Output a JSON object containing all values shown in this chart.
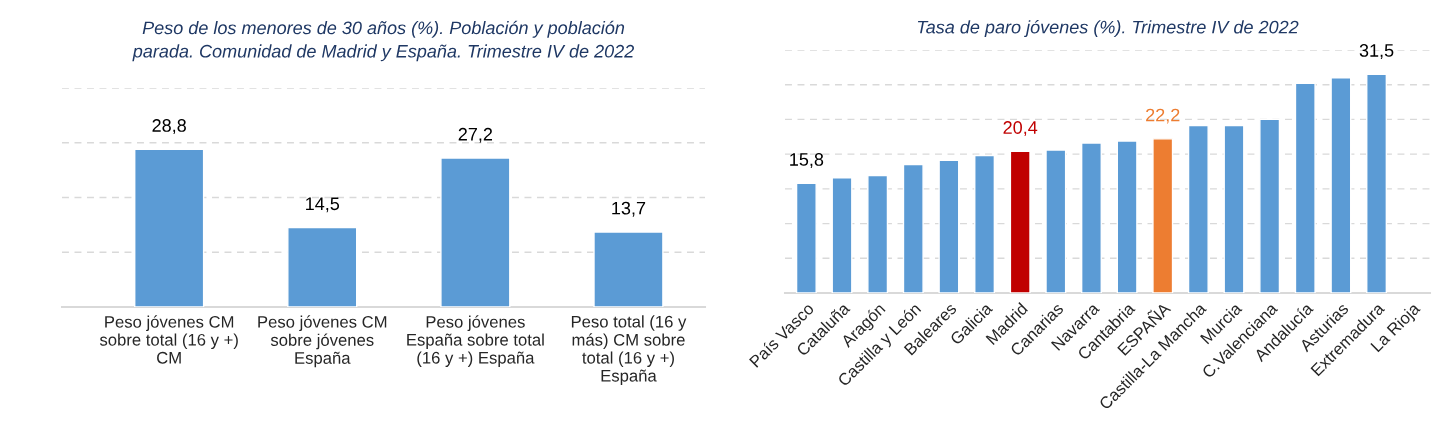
{
  "chart_data": [
    {
      "type": "bar",
      "title": "Peso de los menores de 30 años (%). Población y población\nparada. Comunidad de Madrid y España. Trimestre IV de 2022",
      "categories": [
        "Peso jóvenes CM\nsobre total (16 y +)\nCM",
        "Peso jóvenes CM\nsobre jóvenes\nEspaña",
        "Peso jóvenes\nEspaña sobre total\n(16 y +) España",
        "Peso total (16 y\nmás) CM sobre\ntotal (16 y +)\nEspaña"
      ],
      "values": [
        28.8,
        14.5,
        27.2,
        13.7
      ],
      "value_labels": [
        "28,8",
        "14,5",
        "27,2",
        "13,7"
      ],
      "color": "#5b9bd5",
      "ylim": [
        0,
        40
      ],
      "yticks": [
        0,
        10,
        20,
        30,
        40
      ],
      "tick_labels": "x",
      "grid": "y",
      "line_style": "dashed"
    },
    {
      "type": "bar",
      "title": "Tasa de paro jóvenes (%). Trimestre IV de 2022",
      "categories": [
        "País Vasco",
        "Cataluña",
        "Aragón",
        "Castilla y León",
        "Baleares",
        "Galicia",
        "Madrid",
        "Canarias",
        "Navarra",
        "Cantabria",
        "ESPAÑA",
        "Castilla-La Mancha",
        "Murcia",
        "C.Valenciana",
        "Andalucía",
        "Asturias",
        "Extremadura",
        "La Rioja"
      ],
      "values": [
        15.8,
        16.6,
        16.9,
        18.5,
        19.1,
        19.8,
        20.4,
        20.6,
        21.6,
        21.9,
        22.2,
        24.1,
        24.1,
        25.0,
        30.2,
        31.0,
        31.5,
        null
      ],
      "value_labels": [
        "15,8",
        null,
        null,
        null,
        null,
        null,
        "20,4",
        null,
        null,
        null,
        "22,2",
        null,
        null,
        null,
        null,
        null,
        "31,5",
        null
      ],
      "color": "#5b9bd5",
      "colors": [
        "#5b9bd5",
        "#5b9bd5",
        "#5b9bd5",
        "#5b9bd5",
        "#5b9bd5",
        "#5b9bd5",
        "#c00000",
        "#5b9bd5",
        "#5b9bd5",
        "#5b9bd5",
        "#ed7d31",
        "#5b9bd5",
        "#5b9bd5",
        "#5b9bd5",
        "#5b9bd5",
        "#5b9bd5",
        "#5b9bd5",
        "#5b9bd5"
      ],
      "ylim": [
        0,
        35
      ],
      "yticks": [
        0,
        5,
        10,
        15,
        20,
        25,
        30,
        35
      ],
      "tick_labels": "x",
      "grid": "y",
      "line_style": "dashed"
    }
  ]
}
